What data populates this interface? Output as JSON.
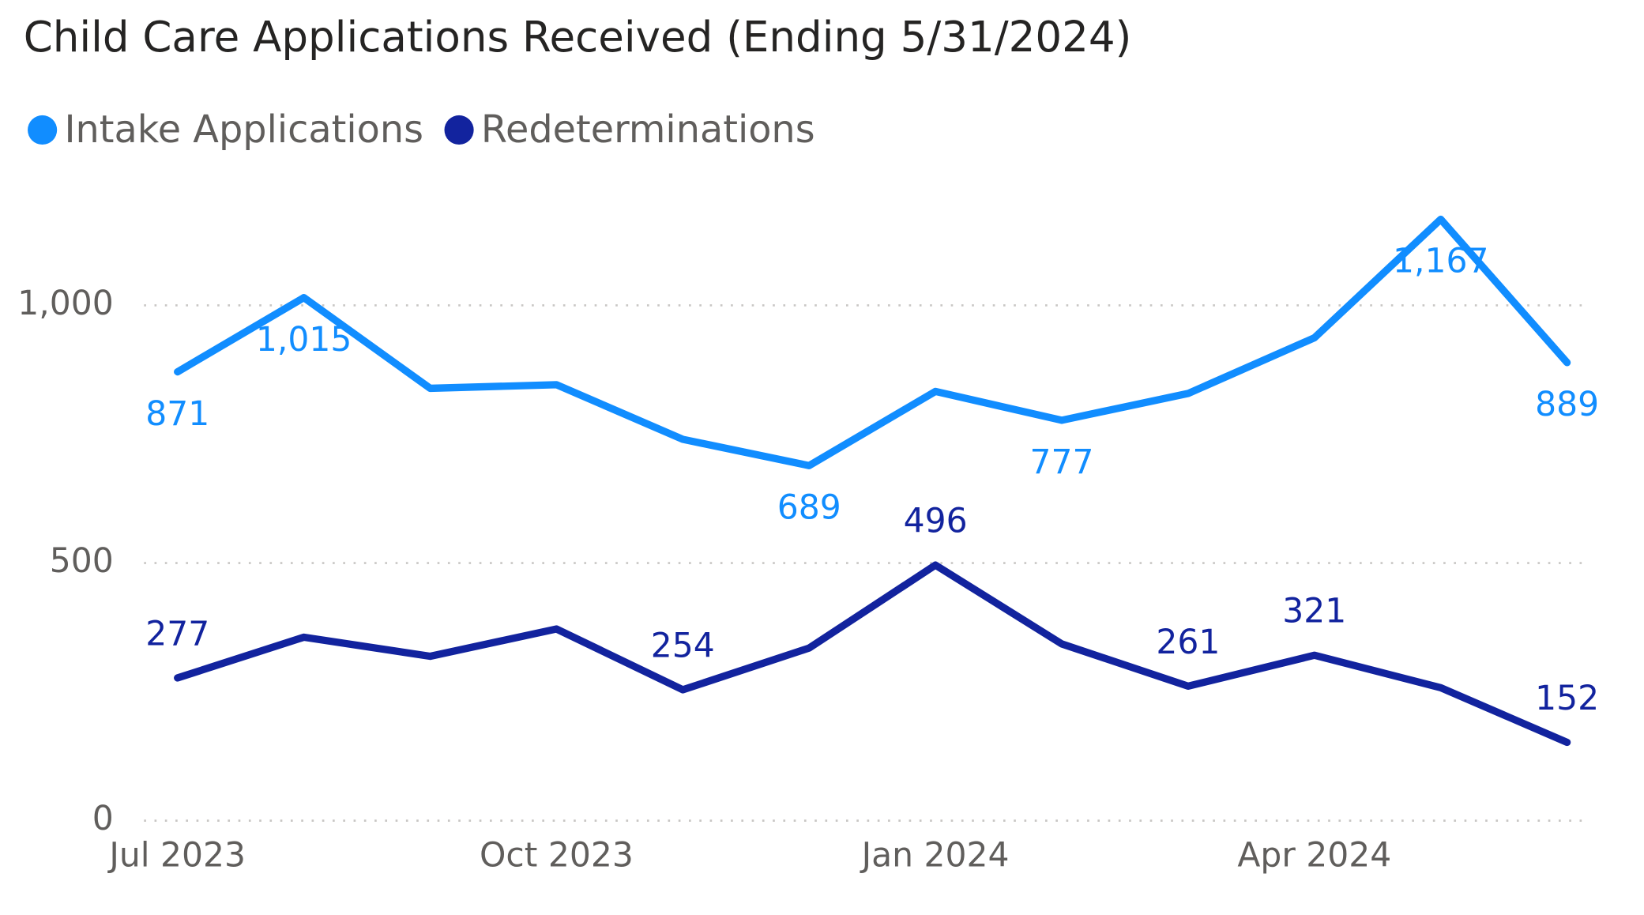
{
  "chart_data": {
    "type": "line",
    "title": "Child Care Applications Received (Ending 5/31/2024)",
    "x": [
      "Jul 2023",
      null,
      null,
      "Oct 2023",
      null,
      null,
      "Jan 2024",
      null,
      null,
      "Apr 2024",
      null,
      null
    ],
    "series": [
      {
        "name": "Intake Applications",
        "color": "#118DFF",
        "values": [
          871,
          1015,
          839,
          846,
          740,
          689,
          833,
          777,
          829,
          937,
          1167,
          889
        ],
        "value_labels": [
          "871",
          "1,015",
          null,
          null,
          null,
          "689",
          null,
          "777",
          null,
          null,
          "1,167",
          "889"
        ]
      },
      {
        "name": "Redeterminations",
        "color": "#12239E",
        "values": [
          277,
          356,
          319,
          372,
          254,
          335,
          496,
          343,
          261,
          321,
          258,
          152
        ],
        "value_labels": [
          "277",
          null,
          null,
          null,
          "254",
          null,
          "496",
          null,
          "261",
          "321",
          null,
          "152"
        ]
      }
    ],
    "ylim": [
      0,
      1200
    ],
    "yticks": [
      0,
      500,
      {
        "value": 1000,
        "label": "1,000"
      }
    ],
    "grid": true,
    "legend": "top-left"
  }
}
